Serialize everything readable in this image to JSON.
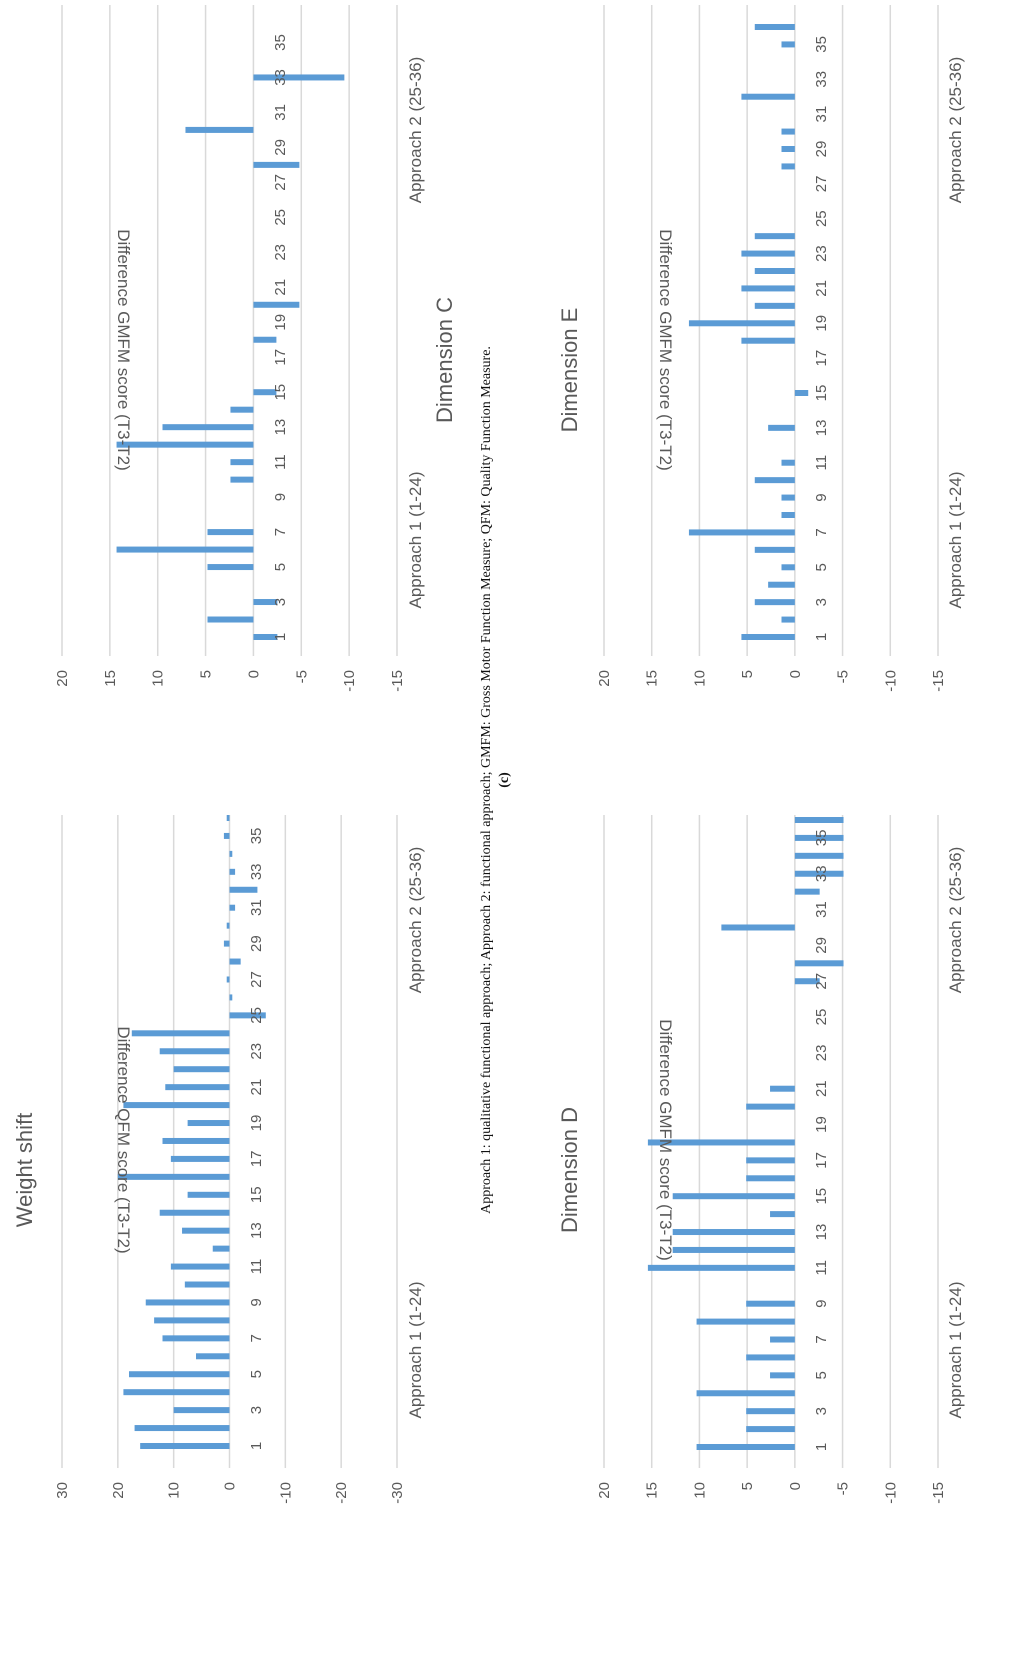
{
  "figure": {
    "caption_label": "(c)",
    "caption": "Approach 1: qualitative functional approach; Approach 2: functional approach; GMFM: Gross Motor Function Measure; QFM: Quality Function Measure."
  },
  "colors": {
    "bar": "#5b9bd5",
    "grid": "#d9d9d9",
    "text": "#595959"
  },
  "chart_data": [
    {
      "type": "bar",
      "title": "Weight shift",
      "ylabel": "Difference QFM score (T3-T2)",
      "ylim": [
        -30,
        30
      ],
      "yticks": [
        30,
        20,
        10,
        0,
        -10,
        -20,
        -30
      ],
      "x": [
        1,
        2,
        3,
        4,
        5,
        6,
        7,
        8,
        9,
        10,
        11,
        12,
        13,
        14,
        15,
        16,
        17,
        18,
        19,
        20,
        21,
        22,
        23,
        24,
        25,
        26,
        27,
        28,
        29,
        30,
        31,
        32,
        33,
        34,
        35,
        36
      ],
      "xticks": [
        1,
        3,
        5,
        7,
        9,
        11,
        13,
        15,
        17,
        19,
        21,
        23,
        25,
        27,
        29,
        31,
        33,
        35
      ],
      "values": [
        16,
        17,
        10,
        19,
        18,
        6,
        12,
        13.5,
        15,
        8,
        10.5,
        3,
        8.5,
        12.5,
        7.5,
        20,
        10.5,
        12,
        7.5,
        19,
        11.5,
        10,
        12.5,
        17.5,
        -6.5,
        -0.5,
        0.5,
        -2,
        1,
        0.5,
        -1,
        -5,
        -1,
        -0.5,
        1,
        0.5
      ],
      "groups": [
        "Approach 1 (1-24)",
        "Approach 2 (25-36)"
      ]
    },
    {
      "type": "bar",
      "title": "Dimension C",
      "ylabel": "Difference GMFM score (T3-T2)",
      "ylim": [
        -15,
        20
      ],
      "yticks": [
        20,
        15,
        10,
        5,
        0,
        -5,
        -10,
        -15
      ],
      "x": [
        1,
        2,
        3,
        4,
        5,
        6,
        7,
        8,
        9,
        10,
        11,
        12,
        13,
        14,
        15,
        16,
        17,
        18,
        19,
        20,
        21,
        22,
        23,
        24,
        25,
        26,
        27,
        28,
        29,
        30,
        31,
        32,
        33,
        35,
        36
      ],
      "xticks": [
        1,
        3,
        5,
        7,
        9,
        11,
        13,
        15,
        17,
        19,
        21,
        23,
        25,
        27,
        29,
        31,
        33,
        35
      ],
      "values": [
        -2.5,
        4.8,
        -2.5,
        0,
        4.8,
        14.3,
        4.8,
        0,
        0,
        2.4,
        2.4,
        14.3,
        9.5,
        2.4,
        -2.4,
        0,
        0,
        -2.4,
        0,
        -4.8,
        0,
        0,
        0,
        0,
        0,
        0,
        0,
        -4.8,
        0,
        7.1,
        0,
        0,
        -9.5,
        0,
        0
      ],
      "groups": [
        "Approach 1 (1-24)",
        "Approach 2 (25-36)"
      ]
    },
    {
      "type": "bar",
      "title": "Dimension D",
      "ylabel": "Difference GMFM score (T3-T2)",
      "ylim": [
        -15,
        20
      ],
      "yticks": [
        20,
        15,
        10,
        5,
        0,
        -5,
        -10,
        -15
      ],
      "x": [
        1,
        2,
        3,
        4,
        5,
        6,
        7,
        8,
        9,
        10,
        11,
        12,
        13,
        14,
        15,
        16,
        17,
        18,
        19,
        20,
        21,
        22,
        23,
        24,
        25,
        26,
        27,
        28,
        29,
        30,
        31,
        32,
        33,
        34,
        35,
        36
      ],
      "xticks": [
        1,
        3,
        5,
        7,
        9,
        11,
        13,
        15,
        17,
        19,
        21,
        23,
        25,
        27,
        29,
        31,
        33,
        35
      ],
      "values": [
        10.3,
        5.1,
        5.1,
        10.3,
        2.6,
        5.1,
        2.6,
        10.3,
        5.1,
        0,
        15.4,
        12.8,
        12.8,
        2.6,
        12.8,
        5.1,
        5.1,
        15.4,
        0,
        5.1,
        2.6,
        0,
        0,
        0,
        0,
        0,
        -2.6,
        -5.1,
        0,
        7.7,
        0,
        -2.6,
        -5.1,
        -5.1,
        -5.1,
        -5.1
      ],
      "groups": [
        "Approach 1 (1-24)",
        "Approach 2 (25-36)"
      ]
    },
    {
      "type": "bar",
      "title": "Dimension E",
      "ylabel": "Difference GMFM score (T3-T2)",
      "ylim": [
        -15,
        20
      ],
      "yticks": [
        20,
        15,
        10,
        5,
        0,
        -5,
        -10,
        -15
      ],
      "x": [
        1,
        2,
        3,
        4,
        5,
        6,
        7,
        8,
        9,
        10,
        11,
        12,
        13,
        14,
        15,
        16,
        17,
        18,
        19,
        20,
        21,
        22,
        23,
        24,
        25,
        26,
        27,
        28,
        29,
        30,
        31,
        32,
        33,
        34,
        35,
        36
      ],
      "xticks": [
        1,
        3,
        5,
        7,
        9,
        11,
        13,
        15,
        17,
        19,
        21,
        23,
        25,
        27,
        29,
        31,
        33,
        35
      ],
      "values": [
        5.6,
        1.4,
        4.2,
        2.8,
        1.4,
        4.2,
        11.1,
        1.4,
        1.4,
        4.2,
        1.4,
        0,
        2.8,
        0,
        -1.4,
        0,
        0,
        5.6,
        11.1,
        4.2,
        5.6,
        4.2,
        5.6,
        4.2,
        0,
        0,
        0,
        1.4,
        1.4,
        1.4,
        0,
        5.6,
        0,
        0,
        1.4,
        4.2
      ],
      "groups": [
        "Approach 1 (1-24)",
        "Approach 2 (25-36)"
      ]
    }
  ]
}
